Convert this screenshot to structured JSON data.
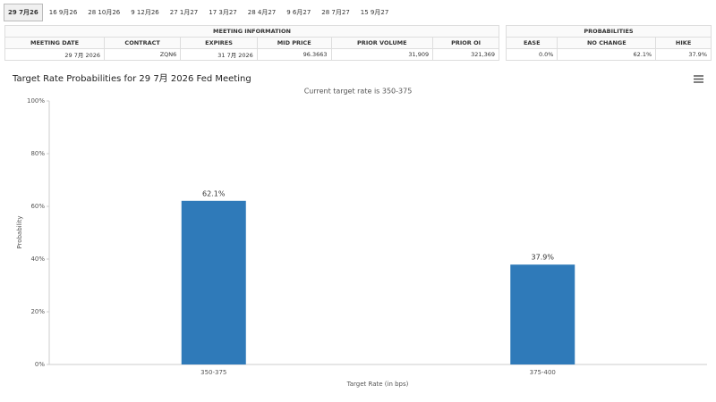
{
  "tabs": [
    "29 7月26",
    "16 9月26",
    "28 10月26",
    "9 12月26",
    "27 1月27",
    "17 3月27",
    "28 4月27",
    "9 6月27",
    "28 7月27",
    "15 9月27"
  ],
  "meeting_info": {
    "title": "MEETING INFORMATION",
    "columns": [
      "MEETING DATE",
      "CONTRACT",
      "EXPIRES",
      "MID PRICE",
      "PRIOR VOLUME",
      "PRIOR OI"
    ],
    "row": [
      "29 7月 2026",
      "ZQN6",
      "31 7月 2026",
      "96.3663",
      "31,909",
      "321,369"
    ]
  },
  "probabilities": {
    "title": "PROBABILITIES",
    "columns": [
      "EASE",
      "NO CHANGE",
      "HIKE"
    ],
    "row": [
      "0.0%",
      "62.1%",
      "37.9%"
    ]
  },
  "chart_data": {
    "type": "bar",
    "title": "Target Rate Probabilities for 29 7月 2026 Fed Meeting",
    "subtitle": "Current target rate is 350-375",
    "y_label": "Probability",
    "x_label": "Target Rate (in bps)",
    "categories": [
      "350-375",
      "375-400"
    ],
    "values": [
      62.1,
      37.9
    ],
    "value_labels": [
      "62.1%",
      "37.9%"
    ],
    "color": "#2f7ab9",
    "ylim": [
      0,
      100
    ],
    "yticks": [
      {
        "value": 0,
        "label": "0%"
      },
      {
        "value": 20,
        "label": "20%"
      },
      {
        "value": 40,
        "label": "40%"
      },
      {
        "value": 60,
        "label": "60%"
      },
      {
        "value": 80,
        "label": "80%"
      },
      {
        "value": 100,
        "label": "100%"
      }
    ],
    "grid": false
  }
}
